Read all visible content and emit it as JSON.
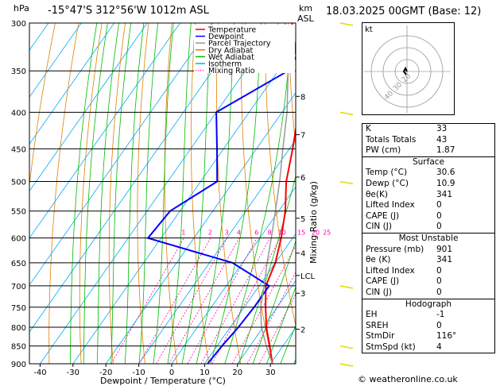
{
  "header": {
    "hpa_label": "hPa",
    "location": "-15°47'S 312°56'W 1012m ASL",
    "km_label": "km",
    "asl_label": "ASL",
    "datetime": "18.03.2025 00GMT (Base: 12)"
  },
  "legend": [
    {
      "label": "Temperature",
      "color": "#ff0000",
      "style": "solid"
    },
    {
      "label": "Dewpoint",
      "color": "#0000ff",
      "style": "solid"
    },
    {
      "label": "Parcel Trajectory",
      "color": "#999999",
      "style": "solid"
    },
    {
      "label": "Dry Adiabat",
      "color": "#e08000",
      "style": "solid"
    },
    {
      "label": "Wet Adiabat",
      "color": "#00bb00",
      "style": "solid"
    },
    {
      "label": "Isotherm",
      "color": "#00aaff",
      "style": "solid"
    },
    {
      "label": "Mixing Ratio",
      "color": "#ff00aa",
      "style": "dotted"
    }
  ],
  "chart_data": {
    "type": "line",
    "title": "-15°47'S 312°56'W 1012m ASL",
    "xlabel": "Dewpoint / Temperature (°C)",
    "ylabel": "hPa",
    "right_ylabel": "Mixing Ratio (g/kg)",
    "xlim": [
      -40,
      35
    ],
    "pressure_levels": [
      300,
      350,
      400,
      450,
      500,
      550,
      600,
      650,
      700,
      750,
      800,
      850,
      900
    ],
    "x_ticks": [
      -40,
      -30,
      -20,
      -10,
      0,
      10,
      20,
      30
    ],
    "km_ticks": [
      {
        "label": "8",
        "p": 380
      },
      {
        "label": "7",
        "p": 430
      },
      {
        "label": "6",
        "p": 493
      },
      {
        "label": "5",
        "p": 563
      },
      {
        "label": "4",
        "p": 630
      },
      {
        "label": "LCL",
        "p": 677
      },
      {
        "label": "3",
        "p": 717
      },
      {
        "label": "2",
        "p": 805
      }
    ],
    "mixing_ratio_labels": [
      "1",
      "2",
      "3",
      "4",
      "6",
      "8",
      "10",
      "15",
      "20",
      "25"
    ],
    "mixing_ratio_values": [
      1,
      2,
      3,
      4,
      6,
      8,
      10,
      15,
      20,
      25
    ],
    "series": [
      {
        "name": "Temperature",
        "color": "#ff0000",
        "points": [
          [
            900,
            30.6
          ],
          [
            850,
            26
          ],
          [
            800,
            21
          ],
          [
            750,
            16.5
          ],
          [
            700,
            12
          ],
          [
            650,
            10
          ],
          [
            600,
            6.5
          ],
          [
            550,
            2
          ],
          [
            500,
            -4
          ],
          [
            450,
            -9
          ],
          [
            400,
            -15
          ],
          [
            350,
            -24
          ],
          [
            300,
            -36
          ]
        ]
      },
      {
        "name": "Dewpoint",
        "color": "#0000ff",
        "points": [
          [
            900,
            10.9
          ],
          [
            850,
            11.5
          ],
          [
            800,
            12.5
          ],
          [
            750,
            13
          ],
          [
            700,
            13
          ],
          [
            650,
            -3
          ],
          [
            600,
            -34
          ],
          [
            550,
            -33
          ],
          [
            500,
            -25
          ],
          [
            450,
            -32
          ],
          [
            400,
            -40
          ],
          [
            350,
            -27
          ],
          [
            300,
            -29
          ]
        ]
      },
      {
        "name": "Parcel Trajectory",
        "color": "#999999",
        "points": [
          [
            900,
            30.6
          ],
          [
            850,
            25
          ],
          [
            800,
            19.5
          ],
          [
            750,
            15
          ],
          [
            700,
            11.5
          ],
          [
            650,
            7.5
          ],
          [
            600,
            3.5
          ],
          [
            550,
            -1
          ],
          [
            500,
            -6
          ],
          [
            450,
            -12
          ],
          [
            400,
            -18.5
          ],
          [
            350,
            -27
          ],
          [
            300,
            -38
          ]
        ]
      }
    ]
  },
  "hodograph": {
    "label": "kt",
    "ring_labels": [
      "40",
      "30",
      "20"
    ]
  },
  "indices": {
    "rows": [
      {
        "label": "K",
        "value": "33"
      },
      {
        "label": "Totals Totals",
        "value": "43"
      },
      {
        "label": "PW (cm)",
        "value": "1.87"
      }
    ]
  },
  "surface": {
    "title": "Surface",
    "rows": [
      {
        "label": "Temp (°C)",
        "value": "30.6"
      },
      {
        "label": "Dewp (°C)",
        "value": "10.9"
      },
      {
        "label": "θe(K)",
        "value": "341"
      },
      {
        "label": "Lifted Index",
        "value": "0"
      },
      {
        "label": "CAPE (J)",
        "value": "0"
      },
      {
        "label": "CIN (J)",
        "value": "0"
      }
    ]
  },
  "most_unstable": {
    "title": "Most Unstable",
    "rows": [
      {
        "label": "Pressure (mb)",
        "value": "901"
      },
      {
        "label": "θe (K)",
        "value": "341"
      },
      {
        "label": "Lifted Index",
        "value": "0"
      },
      {
        "label": "CAPE (J)",
        "value": "0"
      },
      {
        "label": "CIN (J)",
        "value": "0"
      }
    ]
  },
  "hodograph_table": {
    "title": "Hodograph",
    "rows": [
      {
        "label": "EH",
        "value": "-1"
      },
      {
        "label": "SREH",
        "value": "0"
      },
      {
        "label": "StmDir",
        "value": "116°"
      },
      {
        "label": "StmSpd (kt)",
        "value": "4"
      }
    ]
  },
  "copyright": "© weatheronline.co.uk",
  "colors": {
    "grid": "#000000",
    "isotherm": "#00aaff",
    "dry_adiabat": "#e08000",
    "wet_adiabat": "#00bb00",
    "mixing_ratio": "#ff00aa",
    "wind": "#dddd00"
  }
}
